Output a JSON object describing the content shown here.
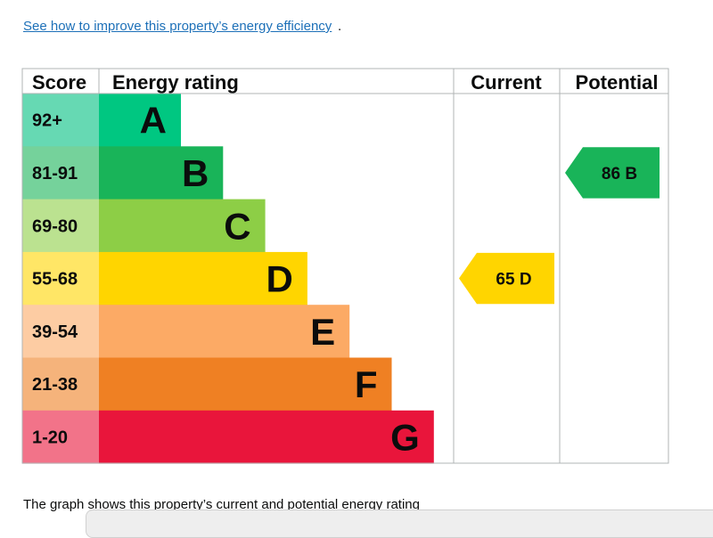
{
  "link_text": "See how to improve this property’s energy efficiency",
  "link_suffix": ".",
  "caption": "The graph shows this property’s current and potential energy rating",
  "chart_data": {
    "type": "bar",
    "headers": {
      "score": "Score",
      "rating": "Energy rating",
      "current": "Current",
      "potential": "Potential"
    },
    "bands": [
      {
        "letter": "A",
        "range": "92+",
        "color": "#00c781",
        "score_bg": "#66d9b3"
      },
      {
        "letter": "B",
        "range": "81-91",
        "color": "#19b459",
        "score_bg": "#75d29b"
      },
      {
        "letter": "C",
        "range": "69-80",
        "color": "#8dce46",
        "score_bg": "#bbe290"
      },
      {
        "letter": "D",
        "range": "55-68",
        "color": "#ffd500",
        "score_bg": "#ffe666"
      },
      {
        "letter": "E",
        "range": "39-54",
        "color": "#fcaa65",
        "score_bg": "#fdcca3"
      },
      {
        "letter": "F",
        "range": "21-38",
        "color": "#ef8023",
        "score_bg": "#f5b37b"
      },
      {
        "letter": "G",
        "range": "1-20",
        "color": "#e9153b",
        "score_bg": "#f27389"
      }
    ],
    "current": {
      "score": 65,
      "band": "D",
      "label": "65  D",
      "color": "#ffd500",
      "text_color": "#0b0c0c"
    },
    "potential": {
      "score": 86,
      "band": "B",
      "label": "86  B",
      "color": "#19b459",
      "text_color": "#0b0c0c"
    }
  }
}
